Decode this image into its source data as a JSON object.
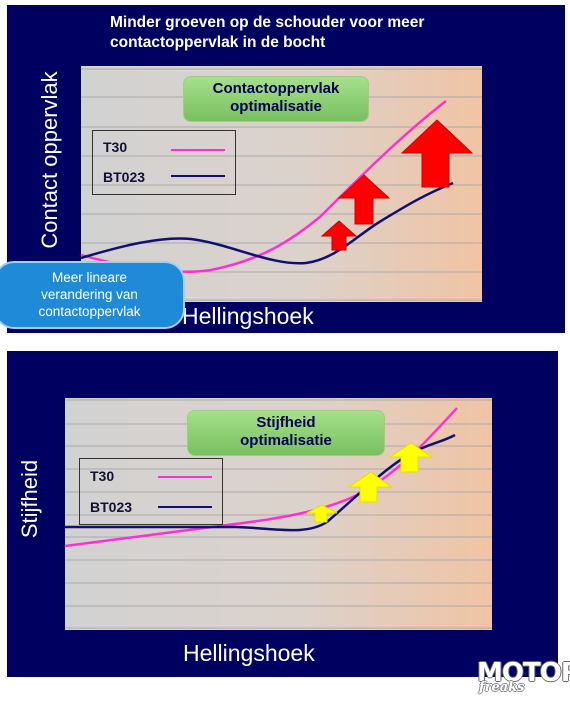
{
  "top_panel": {
    "title_line1": "Minder groeven op de schouder voor meer",
    "title_line2": "contactoppervlak in de bocht",
    "badge_line1": "Contactoppervlak",
    "badge_line2": "optimalisatie",
    "callout_line1": "Meer lineare",
    "callout_line2": "verandering van",
    "callout_line3": "contactoppervlak"
  },
  "bottom_panel": {
    "badge_line1": "Stijfheid",
    "badge_line2": "optimalisatie"
  },
  "logo": {
    "main": "MOTOR",
    "sub": "freaks"
  },
  "colors": {
    "panel": "#000060",
    "t30": "#ff30d0",
    "bt023": "#101070",
    "arrow_top": "#ff0000",
    "arrow_bottom": "#ffff00"
  },
  "chart_data": [
    {
      "type": "line",
      "title": "",
      "xlabel": "Hellingshoek",
      "ylabel": "Contact oppervlak",
      "grid": true,
      "legend_position": "top-left",
      "series": [
        {
          "name": "T30",
          "color": "#ff30d0"
        },
        {
          "name": "BT023",
          "color": "#101070"
        }
      ],
      "annotation_icon": "red-up-arrow"
    },
    {
      "type": "line",
      "title": "",
      "xlabel": "Hellingshoek",
      "ylabel": "Stijfheid",
      "grid": true,
      "legend_position": "top-left",
      "series": [
        {
          "name": "T30",
          "color": "#ff30d0"
        },
        {
          "name": "BT023",
          "color": "#101070"
        }
      ],
      "annotation_icon": "yellow-up-arrow"
    }
  ]
}
